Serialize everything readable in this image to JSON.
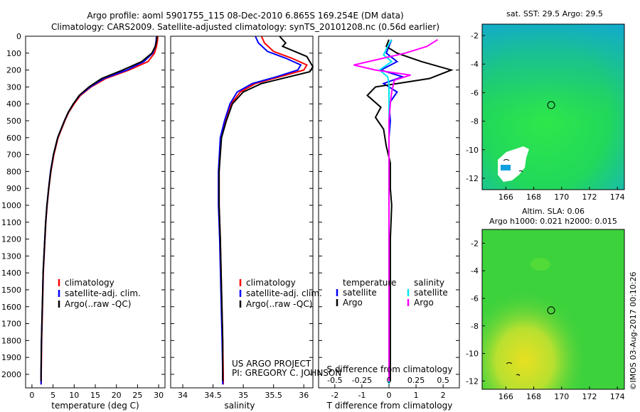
{
  "header": {
    "title_line1": "Argo profile: aoml 5901755_115 08-Dec-2010 6.865S 169.254E (DM data)",
    "title_line2": "Climatology: CARS2009. Satellite-adjusted climatology: synTS_20101208.nc (0.56d earlier)"
  },
  "depth_axis": {
    "ticks": [
      0,
      100,
      200,
      300,
      400,
      500,
      600,
      700,
      800,
      900,
      1000,
      1100,
      1200,
      1300,
      1400,
      1500,
      1600,
      1700,
      1800,
      1900,
      2000
    ],
    "range": [
      0,
      2080
    ]
  },
  "colors": {
    "clim": "#ff0000",
    "sat": "#0000ff",
    "argo": "#000000",
    "sat_sal": "#00e5ee",
    "argo_sal": "#ff00ff"
  },
  "chart_data": [
    {
      "id": "temperature",
      "type": "line",
      "xlabel": "temperature (deg C)",
      "xlim": [
        -1.5,
        31.5
      ],
      "xticks": [
        0,
        5,
        10,
        15,
        20,
        25,
        30
      ],
      "legend": [
        "climatology",
        "satellite-adj. clim.",
        "Argo(..raw -QC)"
      ],
      "series": [
        {
          "name": "climatology",
          "color": "#ff0000",
          "points": [
            [
              29.8,
              0
            ],
            [
              29.7,
              30
            ],
            [
              29.5,
              60
            ],
            [
              29.0,
              100
            ],
            [
              27.5,
              150
            ],
            [
              23.0,
              200
            ],
            [
              17.5,
              250
            ],
            [
              14.0,
              300
            ],
            [
              11.5,
              350
            ],
            [
              10.0,
              400
            ],
            [
              8.7,
              450
            ],
            [
              7.8,
              500
            ],
            [
              6.2,
              600
            ],
            [
              5.2,
              700
            ],
            [
              4.5,
              800
            ],
            [
              4.0,
              900
            ],
            [
              3.6,
              1000
            ],
            [
              3.3,
              1100
            ],
            [
              3.1,
              1200
            ],
            [
              2.9,
              1300
            ],
            [
              2.7,
              1400
            ],
            [
              2.6,
              1500
            ],
            [
              2.5,
              1600
            ],
            [
              2.4,
              1700
            ],
            [
              2.3,
              1800
            ],
            [
              2.25,
              1900
            ],
            [
              2.2,
              2000
            ],
            [
              2.2,
              2060
            ]
          ]
        },
        {
          "name": "satellite-adj. clim.",
          "color": "#0000ff",
          "points": [
            [
              29.5,
              0
            ],
            [
              29.4,
              30
            ],
            [
              29.2,
              60
            ],
            [
              28.6,
              100
            ],
            [
              26.5,
              150
            ],
            [
              22.5,
              200
            ],
            [
              17.0,
              250
            ],
            [
              13.8,
              300
            ],
            [
              11.3,
              350
            ],
            [
              9.8,
              400
            ],
            [
              8.6,
              450
            ],
            [
              7.7,
              500
            ],
            [
              6.1,
              600
            ],
            [
              5.1,
              700
            ],
            [
              4.4,
              800
            ],
            [
              3.95,
              900
            ],
            [
              3.55,
              1000
            ],
            [
              3.25,
              1100
            ],
            [
              3.05,
              1200
            ],
            [
              2.85,
              1300
            ],
            [
              2.65,
              1400
            ],
            [
              2.55,
              1500
            ],
            [
              2.45,
              1600
            ],
            [
              2.35,
              1700
            ],
            [
              2.25,
              1800
            ],
            [
              2.2,
              1900
            ],
            [
              2.15,
              2000
            ],
            [
              2.15,
              2060
            ]
          ]
        },
        {
          "name": "Argo(..raw -QC)",
          "color": "#000000",
          "points": [
            [
              29.6,
              0
            ],
            [
              29.5,
              30
            ],
            [
              29.2,
              60
            ],
            [
              28.4,
              100
            ],
            [
              26.0,
              150
            ],
            [
              21.5,
              200
            ],
            [
              16.5,
              250
            ],
            [
              13.5,
              300
            ],
            [
              11.2,
              350
            ],
            [
              9.8,
              400
            ],
            [
              8.6,
              450
            ],
            [
              7.7,
              500
            ],
            [
              6.1,
              600
            ],
            [
              5.1,
              700
            ],
            [
              4.45,
              800
            ],
            [
              3.95,
              900
            ],
            [
              3.55,
              1000
            ],
            [
              3.25,
              1100
            ],
            [
              3.05,
              1200
            ],
            [
              2.85,
              1300
            ],
            [
              2.65,
              1400
            ],
            [
              2.55,
              1500
            ],
            [
              2.45,
              1600
            ],
            [
              2.35,
              1700
            ],
            [
              2.25,
              1800
            ],
            [
              2.2,
              1900
            ],
            [
              2.15,
              2000
            ],
            [
              2.15,
              2040
            ]
          ]
        }
      ]
    },
    {
      "id": "salinity",
      "type": "line",
      "xlabel": "salinity",
      "xlim": [
        33.8,
        36.15
      ],
      "xticks": [
        34,
        34.5,
        35,
        35.5,
        36
      ],
      "xtick_labels": [
        "34",
        "34.5",
        "35",
        "35.5",
        "36"
      ],
      "legend": [
        "climatology",
        "satellite-adj. clim.",
        "Argo(..raw -QC)"
      ],
      "series": [
        {
          "name": "climatology",
          "color": "#ff0000",
          "points": [
            [
              35.3,
              0
            ],
            [
              35.35,
              40
            ],
            [
              35.5,
              90
            ],
            [
              35.8,
              130
            ],
            [
              36.05,
              170
            ],
            [
              36.0,
              200
            ],
            [
              35.6,
              240
            ],
            [
              35.2,
              280
            ],
            [
              34.95,
              330
            ],
            [
              34.8,
              400
            ],
            [
              34.7,
              500
            ],
            [
              34.63,
              600
            ],
            [
              34.6,
              800
            ],
            [
              34.6,
              1000
            ],
            [
              34.62,
              1200
            ],
            [
              34.64,
              1500
            ],
            [
              34.66,
              1800
            ],
            [
              34.67,
              2000
            ],
            [
              34.67,
              2060
            ]
          ]
        },
        {
          "name": "satellite-adj. clim.",
          "color": "#0000ff",
          "points": [
            [
              35.2,
              0
            ],
            [
              35.25,
              40
            ],
            [
              35.4,
              90
            ],
            [
              35.7,
              130
            ],
            [
              35.95,
              170
            ],
            [
              35.9,
              200
            ],
            [
              35.55,
              240
            ],
            [
              35.15,
              280
            ],
            [
              34.9,
              330
            ],
            [
              34.78,
              400
            ],
            [
              34.69,
              500
            ],
            [
              34.62,
              600
            ],
            [
              34.59,
              800
            ],
            [
              34.59,
              1000
            ],
            [
              34.61,
              1200
            ],
            [
              34.63,
              1500
            ],
            [
              34.65,
              1800
            ],
            [
              34.66,
              2000
            ],
            [
              34.66,
              2060
            ]
          ]
        },
        {
          "name": "Argo(..raw -QC)",
          "color": "#000000",
          "points": [
            [
              35.6,
              0
            ],
            [
              35.65,
              20
            ],
            [
              35.7,
              40
            ],
            [
              35.65,
              60
            ],
            [
              35.85,
              90
            ],
            [
              36.05,
              120
            ],
            [
              36.1,
              150
            ],
            [
              36.15,
              180
            ],
            [
              36.1,
              210
            ],
            [
              35.7,
              245
            ],
            [
              35.3,
              280
            ],
            [
              35.0,
              330
            ],
            [
              34.82,
              400
            ],
            [
              34.72,
              500
            ],
            [
              34.64,
              600
            ],
            [
              34.6,
              800
            ],
            [
              34.6,
              1000
            ],
            [
              34.62,
              1200
            ],
            [
              34.64,
              1500
            ],
            [
              34.66,
              1800
            ],
            [
              34.66,
              2000
            ],
            [
              34.66,
              2040
            ]
          ]
        }
      ]
    },
    {
      "id": "difference",
      "type": "line",
      "xlabel_top": "S difference from climatology",
      "xlabel": "T difference from climatology",
      "xlim": [
        -2.6,
        2.6
      ],
      "xticks": [
        -2,
        -1,
        0,
        1,
        2
      ],
      "top_xticks": [
        -0.5,
        -0.25,
        0,
        0.25,
        0.5
      ],
      "top_tick_labels": [
        "-0.5",
        "-0.25",
        "0",
        "0.25",
        "0.5"
      ],
      "legend": {
        "temperature_header": "temperature",
        "salinity_header": "salinity",
        "items_t": [
          "satellite",
          "Argo"
        ],
        "items_s": [
          "satellite",
          "Argo"
        ]
      },
      "series": [
        {
          "name": "T satellite",
          "color": "#0000ff",
          "points": [
            [
              0.1,
              20
            ],
            [
              0.0,
              60
            ],
            [
              -0.1,
              100
            ],
            [
              0.3,
              150
            ],
            [
              -0.3,
              200
            ],
            [
              0.5,
              240
            ],
            [
              -0.2,
              280
            ],
            [
              0.3,
              330
            ],
            [
              0.0,
              400
            ],
            [
              0.05,
              500
            ],
            [
              0.0,
              600
            ],
            [
              0.0,
              800
            ],
            [
              0.0,
              1000
            ],
            [
              0.0,
              1500
            ],
            [
              0.0,
              2000
            ],
            [
              0.0,
              2060
            ]
          ]
        },
        {
          "name": "T Argo",
          "color": "#000000",
          "points": [
            [
              0.0,
              20
            ],
            [
              -0.1,
              60
            ],
            [
              0.3,
              100
            ],
            [
              1.2,
              150
            ],
            [
              2.3,
              200
            ],
            [
              1.5,
              250
            ],
            [
              -0.5,
              300
            ],
            [
              -0.8,
              350
            ],
            [
              -0.3,
              420
            ],
            [
              -0.5,
              480
            ],
            [
              -0.2,
              550
            ],
            [
              -0.1,
              650
            ],
            [
              0.05,
              750
            ],
            [
              0.05,
              900
            ],
            [
              0.1,
              1000
            ],
            [
              0.05,
              1200
            ],
            [
              0.05,
              1500
            ],
            [
              0.05,
              1800
            ],
            [
              0.05,
              2000
            ],
            [
              0.05,
              2040
            ]
          ]
        },
        {
          "name": "S satellite",
          "color": "#00e5ee",
          "points": [
            [
              0.1,
              20
            ],
            [
              -0.05,
              60
            ],
            [
              -0.2,
              110
            ],
            [
              0.1,
              150
            ],
            [
              -0.35,
              200
            ],
            [
              -0.05,
              240
            ],
            [
              0.0,
              280
            ],
            [
              0.0,
              350
            ],
            [
              0.0,
              500
            ],
            [
              0.0,
              1000
            ],
            [
              0.0,
              1500
            ],
            [
              0.0,
              2000
            ],
            [
              0.0,
              2060
            ]
          ]
        },
        {
          "name": "S Argo",
          "color": "#ff00ff",
          "points": [
            [
              1.8,
              20
            ],
            [
              1.4,
              60
            ],
            [
              0.6,
              100
            ],
            [
              -1.3,
              170
            ],
            [
              -0.5,
              200
            ],
            [
              0.8,
              230
            ],
            [
              0.2,
              260
            ],
            [
              0.1,
              330
            ],
            [
              0.05,
              400
            ],
            [
              0.0,
              500
            ],
            [
              0.0,
              600
            ],
            [
              0.0,
              1000
            ],
            [
              0.0,
              1500
            ],
            [
              0.0,
              2000
            ],
            [
              0.0,
              2040
            ]
          ]
        }
      ]
    }
  ],
  "maps": {
    "sst": {
      "title": "sat. SST: 29.5 Argo: 29.5",
      "xticks": [
        "166",
        "168",
        "170",
        "172",
        "174"
      ],
      "yticks": [
        "-2",
        "-4",
        "-6",
        "-8",
        "-10",
        "-12"
      ],
      "argo_marker": {
        "lon": 169.25,
        "lat": -6.87
      }
    },
    "sla": {
      "title1": "Altim. SLA: 0.06",
      "title2": "Argo h1000: 0.021 h2000: 0.015",
      "xticks": [
        "166",
        "168",
        "170",
        "172",
        "174"
      ],
      "yticks": [
        "-2",
        "-4",
        "-6",
        "-8",
        "-10",
        "-12"
      ],
      "argo_marker": {
        "lon": 169.25,
        "lat": -6.87
      }
    }
  },
  "credits": {
    "project": "US ARGO PROJECT",
    "pi": "PI: GREGORY C. JOHNSON",
    "imos": "©IMOS 03-Aug-2017 00:10:26"
  }
}
